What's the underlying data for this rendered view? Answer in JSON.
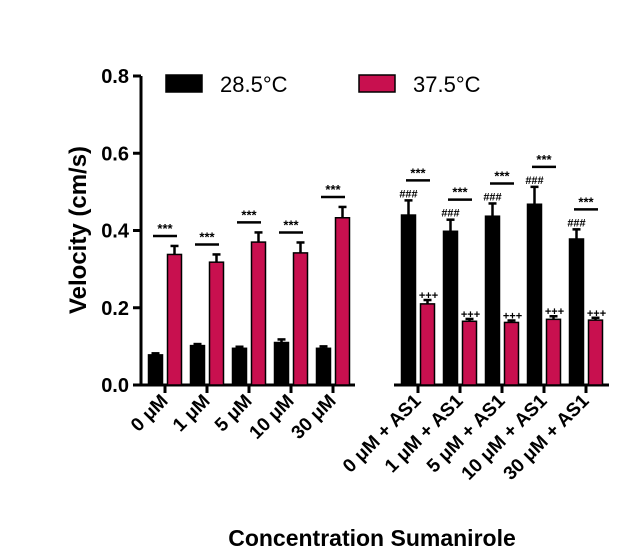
{
  "chart_data": {
    "type": "bar",
    "xlabel": "Concentration Sumanirole",
    "ylabel": "Velocity (cm/s)",
    "ylim": [
      0,
      0.8
    ],
    "yticks": [
      "0.0",
      "0.2",
      "0.4",
      "0.6",
      "0.8"
    ],
    "categories": [
      "0 μM",
      "1 μM",
      "5 μM",
      "10 μM",
      "30 μM",
      "0 μM + AS1",
      "1 μM + AS1",
      "5 μM + AS1",
      "10 μM + AS1",
      "30 μM + AS1"
    ],
    "series": [
      {
        "name": "28.5°C",
        "color": "#000000",
        "values": [
          0.078,
          0.102,
          0.095,
          0.11,
          0.095,
          0.44,
          0.398,
          0.437,
          0.468,
          0.378
        ],
        "errors": [
          0.004,
          0.004,
          0.004,
          0.008,
          0.005,
          0.038,
          0.03,
          0.033,
          0.045,
          0.025
        ]
      },
      {
        "name": "37.5°C",
        "color": "#c8104f",
        "values": [
          0.338,
          0.318,
          0.37,
          0.342,
          0.433,
          0.21,
          0.165,
          0.162,
          0.17,
          0.168
        ],
        "errors": [
          0.022,
          0.02,
          0.025,
          0.027,
          0.028,
          0.01,
          0.006,
          0.005,
          0.008,
          0.006
        ]
      }
    ],
    "annotations": {
      "pair_marks": [
        "***",
        "***",
        "***",
        "***",
        "***",
        "***",
        "***",
        "***",
        "***",
        "***"
      ],
      "hash_marks": [
        "",
        "",
        "",
        "",
        "",
        "###",
        "###",
        "###",
        "###",
        "###"
      ],
      "plus_marks": [
        "",
        "",
        "",
        "",
        "",
        "+++",
        "+++",
        "+++",
        "+++",
        "+++"
      ]
    },
    "legend_position": "top"
  }
}
